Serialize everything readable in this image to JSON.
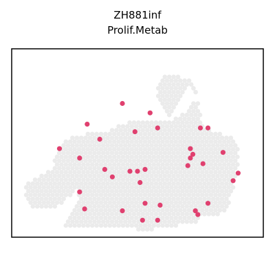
{
  "chart_data": {
    "type": "scatter",
    "title": "ZH881inf",
    "subtitle": "Prolif.Metab",
    "xlabel": "",
    "ylabel": "",
    "xlim": [
      0,
      100
    ],
    "ylim": [
      0,
      100
    ],
    "grid": false,
    "legend": "none",
    "colors": {
      "background_spot": "#ebebeb",
      "highlight_spot": "#e0406f",
      "frame": "#000000"
    },
    "tissue_regions": [
      [
        [
          58,
          82
        ],
        [
          58,
          72
        ],
        [
          61,
          65
        ],
        [
          64,
          64
        ],
        [
          65,
          70
        ],
        [
          67,
          74
        ],
        [
          70,
          80
        ],
        [
          74,
          76
        ],
        [
          73,
          72
        ],
        [
          70,
          68
        ],
        [
          64,
          62
        ],
        [
          58,
          62
        ],
        [
          50,
          62
        ],
        [
          44,
          60
        ],
        [
          38,
          56
        ],
        [
          33,
          56
        ],
        [
          28,
          54
        ],
        [
          23,
          53
        ],
        [
          20,
          49
        ],
        [
          17,
          42
        ],
        [
          17,
          36
        ],
        [
          8,
          31
        ],
        [
          5,
          27
        ],
        [
          5,
          20
        ],
        [
          8,
          16
        ],
        [
          14,
          15
        ],
        [
          19,
          17
        ],
        [
          24,
          22
        ],
        [
          27,
          26
        ],
        [
          26,
          17
        ],
        [
          21,
          8
        ],
        [
          20,
          6
        ],
        [
          24,
          5
        ],
        [
          33,
          6
        ],
        [
          40,
          6
        ],
        [
          45,
          6
        ],
        [
          50,
          4
        ],
        [
          56,
          4
        ],
        [
          60,
          5
        ],
        [
          64,
          5
        ],
        [
          70,
          8
        ],
        [
          74,
          8
        ],
        [
          76,
          11
        ],
        [
          78,
          11
        ],
        [
          82,
          11
        ],
        [
          86,
          16
        ],
        [
          88,
          25
        ],
        [
          90,
          38
        ],
        [
          90,
          50
        ],
        [
          86,
          54
        ],
        [
          80,
          56
        ],
        [
          76,
          58
        ],
        [
          75,
          66
        ],
        [
          74,
          72
        ],
        [
          73,
          80
        ],
        [
          70,
          84
        ],
        [
          64,
          86
        ],
        [
          60,
          86
        ]
      ]
    ],
    "highlight_points": {
      "x": [
        44,
        55,
        30,
        58,
        49,
        35,
        75,
        78,
        19,
        27,
        71,
        72,
        84,
        71,
        70,
        76,
        90,
        88,
        37,
        40,
        47,
        50,
        53,
        51,
        27,
        29,
        44,
        53,
        59,
        58,
        52,
        73,
        78,
        74
      ],
      "y": [
        71,
        66,
        60,
        58,
        56,
        52,
        58,
        58,
        47,
        42,
        47,
        44,
        45,
        42,
        38,
        39,
        34,
        30,
        36,
        32,
        35,
        35,
        36,
        29,
        24,
        15,
        14,
        18,
        17,
        9,
        9,
        14,
        18,
        12
      ]
    }
  }
}
